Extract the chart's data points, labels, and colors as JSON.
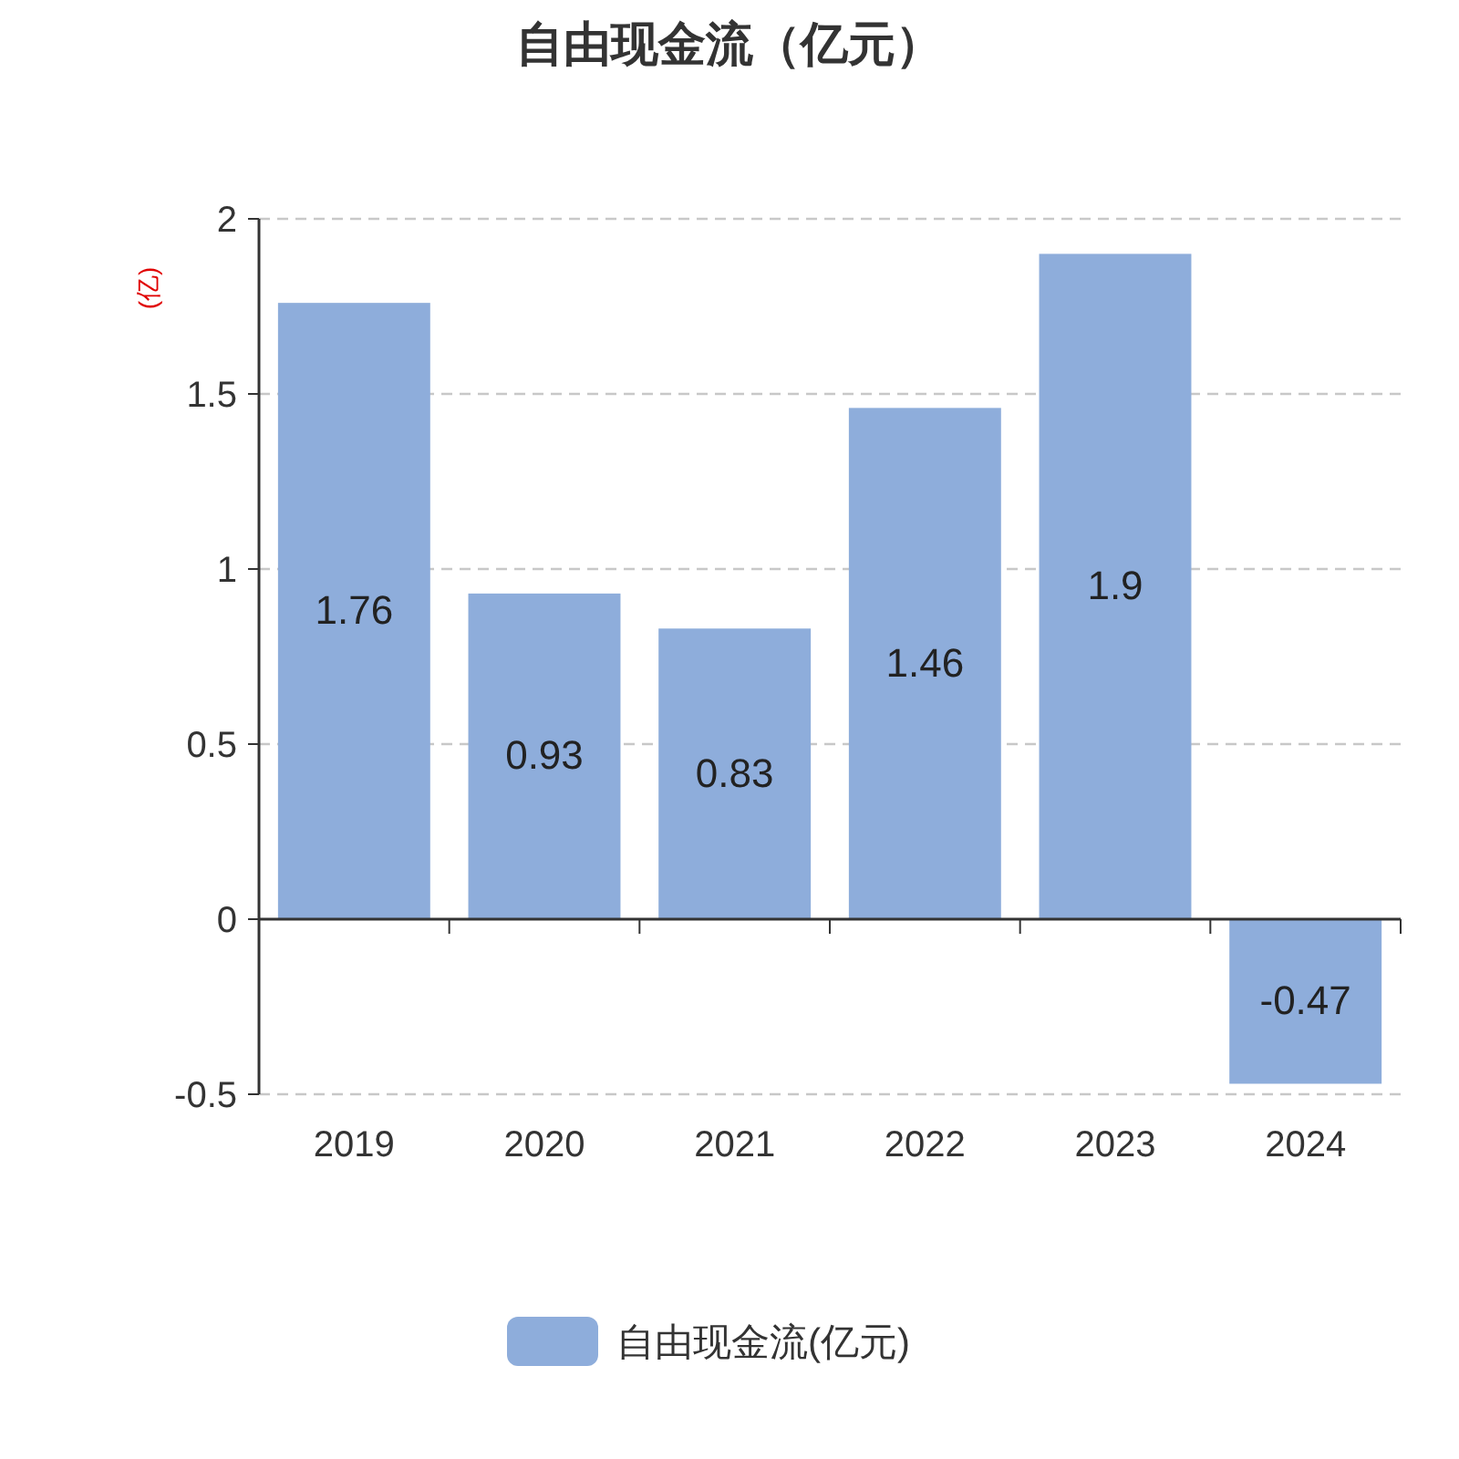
{
  "chart_data": {
    "type": "bar",
    "title": "自由现金流（亿元）",
    "ylabel": "(亿)",
    "categories": [
      "2019",
      "2020",
      "2021",
      "2022",
      "2023",
      "2024"
    ],
    "series": [
      {
        "name": "自由现金流(亿元)",
        "color": "#8eaddb",
        "values": [
          1.76,
          0.93,
          0.83,
          1.46,
          1.9,
          -0.47
        ]
      }
    ],
    "ylim": [
      -0.5,
      2
    ],
    "yticks": [
      -0.5,
      0,
      0.5,
      1,
      1.5,
      2
    ],
    "grid": "y",
    "legend": "bottom",
    "data_labels": true
  }
}
